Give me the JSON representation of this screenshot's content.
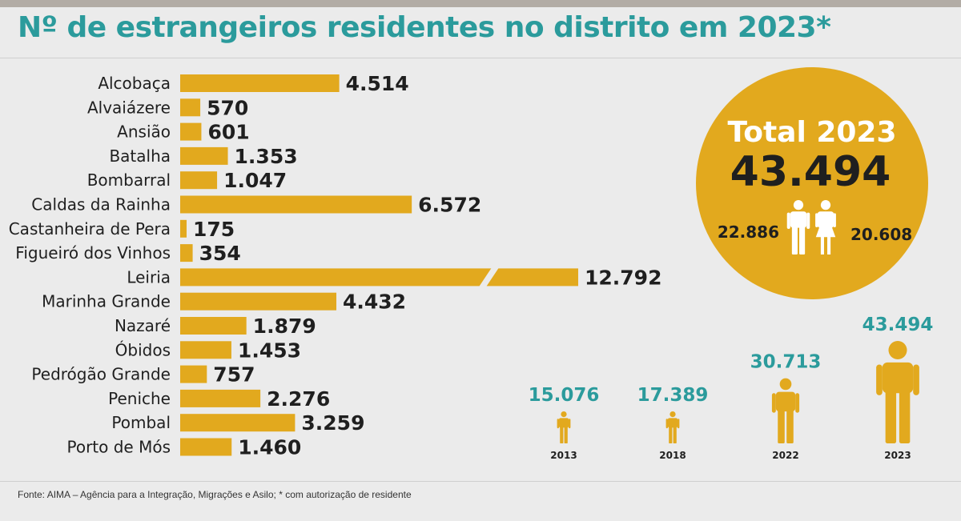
{
  "header": {
    "title": "Nº de estrangeiros residentes no distrito em 2023*"
  },
  "footer": {
    "source": "Fonte: AIMA – Agência para a Integração, Migrações e Asilo; * com autorização de residente"
  },
  "colors": {
    "bar": "#e2a91e",
    "accent": "#2b9b9c",
    "circle": "#e2a91e",
    "background": "#ebebeb"
  },
  "chart_data": [
    {
      "type": "bar",
      "orientation": "horizontal",
      "categories": [
        "Alcobaça",
        "Alvaiázere",
        "Ansião",
        "Batalha",
        "Bombarral",
        "Caldas da Rainha",
        "Castanheira de Pera",
        "Figueiró dos Vinhos",
        "Leiria",
        "Marinha Grande",
        "Nazaré",
        "Óbidos",
        "Pedrógão Grande",
        "Peniche",
        "Pombal",
        "Porto de Mós"
      ],
      "values": [
        4514,
        570,
        601,
        1353,
        1047,
        6572,
        175,
        354,
        12792,
        4432,
        1879,
        1453,
        757,
        2276,
        3259,
        1460
      ],
      "value_labels": [
        "4.514",
        "570",
        "601",
        "1.353",
        "1.047",
        "6.572",
        "175",
        "354",
        "12.792",
        "4.432",
        "1.879",
        "1.453",
        "757",
        "2.276",
        "3.259",
        "1.460"
      ],
      "broken_axis_category": "Leiria",
      "xlim": [
        0,
        7500
      ]
    },
    {
      "type": "pictogram",
      "categories": [
        "2013",
        "2018",
        "2022",
        "2023"
      ],
      "values": [
        15076,
        17389,
        30713,
        43494
      ],
      "value_labels": [
        "15.076",
        "17.389",
        "30.713",
        "43.494"
      ]
    }
  ],
  "total": {
    "title": "Total 2023",
    "value_label": "43.494",
    "male_label": "22.886",
    "female_label": "20.608",
    "male": 22886,
    "female": 20608
  }
}
